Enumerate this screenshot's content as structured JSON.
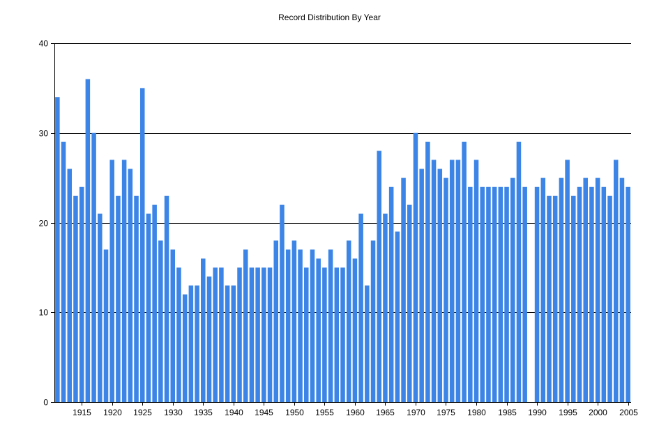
{
  "chart_data": {
    "type": "bar",
    "title": "Record Distribution By Year",
    "xlabel": "",
    "ylabel": "",
    "ylim": [
      0,
      40
    ],
    "yticks": [
      0,
      10,
      20,
      30,
      40
    ],
    "xticks": [
      1915,
      1920,
      1925,
      1930,
      1935,
      1940,
      1945,
      1950,
      1955,
      1960,
      1965,
      1970,
      1975,
      1980,
      1985,
      1990,
      1995,
      2000,
      2005
    ],
    "grid": true,
    "bar_color": "#3C85E6",
    "categories": [
      1911,
      1912,
      1913,
      1914,
      1915,
      1916,
      1917,
      1918,
      1919,
      1920,
      1921,
      1922,
      1923,
      1924,
      1925,
      1926,
      1927,
      1928,
      1929,
      1930,
      1931,
      1932,
      1933,
      1934,
      1935,
      1936,
      1937,
      1938,
      1939,
      1940,
      1941,
      1942,
      1943,
      1944,
      1945,
      1946,
      1947,
      1948,
      1949,
      1950,
      1951,
      1952,
      1953,
      1954,
      1955,
      1956,
      1957,
      1958,
      1959,
      1960,
      1961,
      1962,
      1963,
      1964,
      1965,
      1966,
      1967,
      1968,
      1969,
      1970,
      1971,
      1972,
      1973,
      1974,
      1975,
      1976,
      1977,
      1978,
      1979,
      1980,
      1981,
      1982,
      1983,
      1984,
      1985,
      1986,
      1987,
      1988,
      1989,
      1990,
      1991,
      1992,
      1993,
      1994,
      1995,
      1996,
      1997,
      1998,
      1999,
      2000,
      2001,
      2002,
      2003,
      2004,
      2005
    ],
    "values": [
      34,
      29,
      26,
      23,
      24,
      36,
      30,
      21,
      17,
      27,
      23,
      27,
      26,
      23,
      35,
      21,
      22,
      18,
      23,
      17,
      15,
      12,
      13,
      13,
      16,
      14,
      15,
      15,
      13,
      13,
      15,
      17,
      15,
      15,
      15,
      15,
      18,
      22,
      17,
      18,
      17,
      15,
      17,
      16,
      15,
      17,
      15,
      15,
      18,
      16,
      21,
      13,
      18,
      28,
      21,
      24,
      19,
      25,
      22,
      30,
      26,
      29,
      27,
      26,
      25,
      27,
      27,
      29,
      24,
      27,
      24,
      24,
      24,
      24,
      24,
      25,
      29,
      24,
      0,
      24,
      25,
      23,
      23,
      25,
      27,
      23,
      24,
      25,
      24,
      25,
      24,
      23,
      27,
      25,
      24
    ]
  }
}
